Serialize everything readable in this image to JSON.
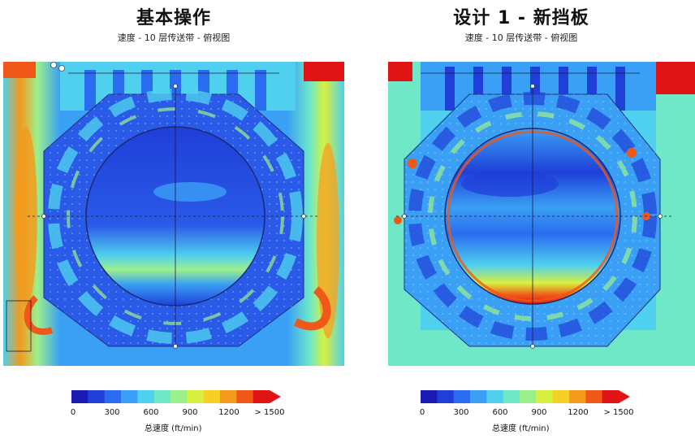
{
  "panels": [
    {
      "title": "基本操作",
      "subtitle": "速度 - 10 层传送带 - 俯视图",
      "colorbar": {
        "ticks": [
          "0",
          "300",
          "600",
          "900",
          "1200",
          "> 1500"
        ],
        "label": "总速度 (ft/min)"
      }
    },
    {
      "title": "设计 1 - 新挡板",
      "subtitle": "速度 - 10 层传送带 - 俯视图",
      "colorbar": {
        "ticks": [
          "0",
          "300",
          "600",
          "900",
          "1200",
          "> 1500"
        ],
        "label": "总速度 (ft/min)"
      }
    }
  ],
  "colors": {
    "scale": [
      "#1a1ab4",
      "#1f3fd8",
      "#2a6cf0",
      "#3aa0f5",
      "#4fd0ee",
      "#6fe8c8",
      "#9cf08c",
      "#d8f040",
      "#f6d024",
      "#f49a1c",
      "#ef5818",
      "#e01414"
    ]
  }
}
